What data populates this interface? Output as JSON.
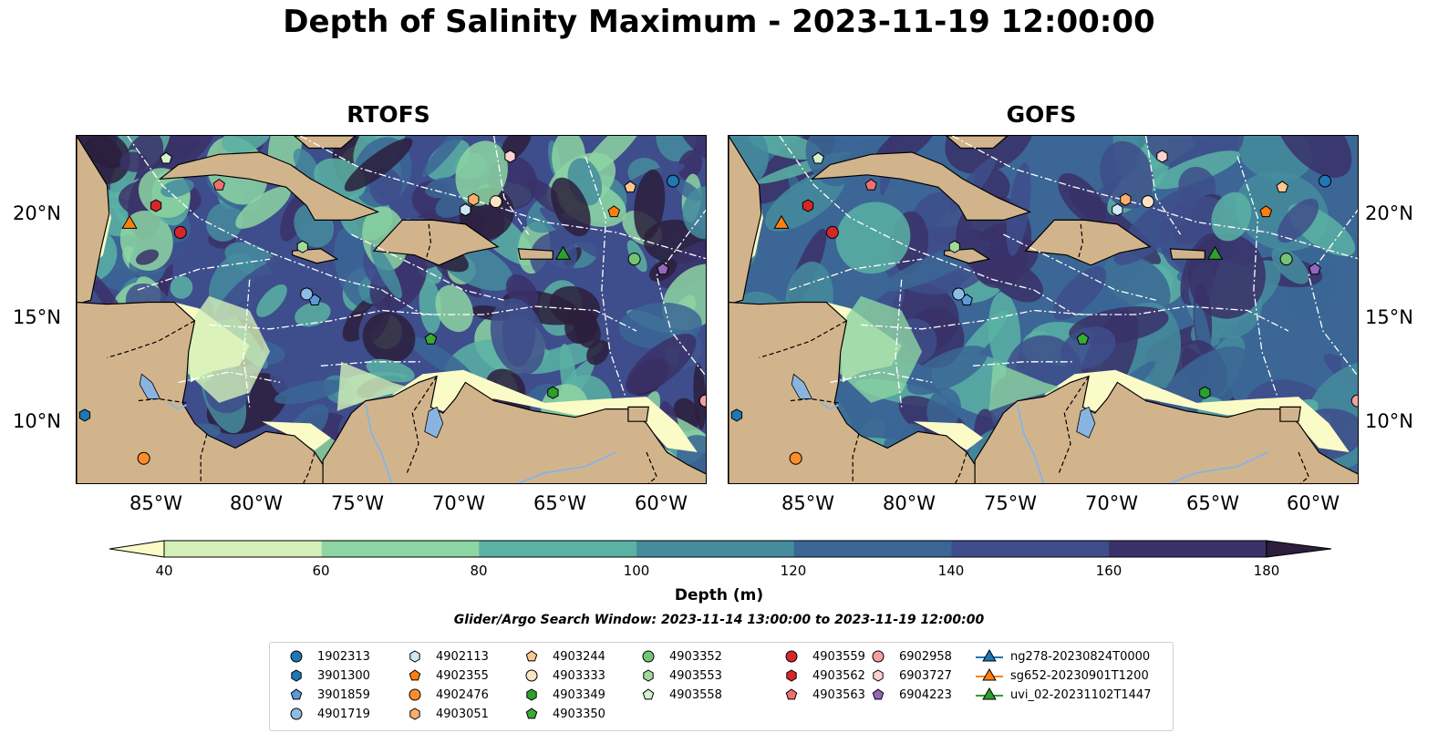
{
  "figure": {
    "title": "Depth of Salinity Maximum - 2023-11-19 12:00:00",
    "search_window": "Glider/Argo Search Window: 2023-11-14 13:00:00 to 2023-11-19 12:00:00"
  },
  "panels": [
    {
      "title": "RTOFS"
    },
    {
      "title": "GOFS"
    }
  ],
  "axes": {
    "lat_labels": [
      "20°N",
      "15°N",
      "10°N"
    ],
    "lon_labels": [
      "85°W",
      "80°W",
      "75°W",
      "70°W",
      "65°W",
      "60°W"
    ]
  },
  "colorbar": {
    "label": "Depth (m)",
    "ticks": [
      "40",
      "60",
      "80",
      "100",
      "120",
      "140",
      "160",
      "180"
    ],
    "colors": [
      "#fbfbc8",
      "#d4f0b8",
      "#8dd5a2",
      "#5ab2a4",
      "#458c9d",
      "#3b6695",
      "#3e4d8b",
      "#3a3168",
      "#2c1e3c"
    ]
  },
  "legend": {
    "items": [
      {
        "label": "1902313",
        "marker": "circle",
        "color": "#1f77b4"
      },
      {
        "label": "3901300",
        "marker": "hexagon",
        "color": "#1f77b4"
      },
      {
        "label": "3901859",
        "marker": "pentagon",
        "color": "#5b9bd5"
      },
      {
        "label": "4901719",
        "marker": "circle",
        "color": "#8dbde6"
      },
      {
        "label": "4902113",
        "marker": "hexagon",
        "color": "#cfe8f8"
      },
      {
        "label": "4902355",
        "marker": "pentagon",
        "color": "#ff7f0e"
      },
      {
        "label": "4902476",
        "marker": "circle",
        "color": "#ff8c2a"
      },
      {
        "label": "4903051",
        "marker": "hexagon",
        "color": "#fdae6b"
      },
      {
        "label": "4903244",
        "marker": "pentagon",
        "color": "#fdc790"
      },
      {
        "label": "4903333",
        "marker": "circle",
        "color": "#fde3c6"
      },
      {
        "label": "4903349",
        "marker": "hexagon",
        "color": "#2ca02c"
      },
      {
        "label": "4903350",
        "marker": "pentagon",
        "color": "#3aaa35"
      },
      {
        "label": "4903352",
        "marker": "circle",
        "color": "#74c476"
      },
      {
        "label": "4903553",
        "marker": "hexagon",
        "color": "#a1d99b"
      },
      {
        "label": "4903558",
        "marker": "pentagon",
        "color": "#d4f2cc"
      },
      {
        "label": "4903559",
        "marker": "circle",
        "color": "#d62728"
      },
      {
        "label": "4903562",
        "marker": "hexagon",
        "color": "#d62728"
      },
      {
        "label": "4903563",
        "marker": "pentagon",
        "color": "#f07070"
      },
      {
        "label": "6902958",
        "marker": "circle",
        "color": "#f4a0a0"
      },
      {
        "label": "6903727",
        "marker": "hexagon",
        "color": "#fcd1d1"
      },
      {
        "label": "6904223",
        "marker": "pentagon",
        "color": "#9467bd"
      },
      {
        "label": "ng278-20230824T0000",
        "marker": "triangle-line",
        "color": "#1f77b4"
      },
      {
        "label": "sg652-20230901T1200",
        "marker": "triangle-line",
        "color": "#ff7f0e"
      },
      {
        "label": "uvi_02-20231102T1447",
        "marker": "triangle-line",
        "color": "#2ca02c"
      }
    ]
  },
  "map_extent": {
    "lon": [
      -89,
      -58
    ],
    "lat": [
      7,
      24
    ]
  },
  "land_color": "#d2b48c",
  "lake_color": "#8ab4e0",
  "markers": [
    {
      "id": "1902313",
      "lon": -59.7,
      "lat": 21.8
    },
    {
      "id": "3901300",
      "lon": -88.6,
      "lat": 10.4
    },
    {
      "id": "3901859",
      "lon": -77.3,
      "lat": 16.0
    },
    {
      "id": "4901719",
      "lon": -77.7,
      "lat": 16.3
    },
    {
      "id": "4902113",
      "lon": -69.9,
      "lat": 20.4
    },
    {
      "id": "4902355",
      "lon": -62.6,
      "lat": 20.3
    },
    {
      "id": "4902476",
      "lon": -85.7,
      "lat": 8.3
    },
    {
      "id": "4903051",
      "lon": -69.5,
      "lat": 20.9
    },
    {
      "id": "4903244",
      "lon": -61.8,
      "lat": 21.5
    },
    {
      "id": "4903333",
      "lon": -68.4,
      "lat": 20.8
    },
    {
      "id": "4903349",
      "lon": -65.6,
      "lat": 11.5
    },
    {
      "id": "4903350",
      "lon": -71.6,
      "lat": 14.1
    },
    {
      "id": "4903352",
      "lon": -61.6,
      "lat": 18.0
    },
    {
      "id": "4903553",
      "lon": -77.9,
      "lat": 18.6
    },
    {
      "id": "4903558",
      "lon": -84.6,
      "lat": 22.9
    },
    {
      "id": "4903559",
      "lon": -83.9,
      "lat": 19.3
    },
    {
      "id": "4903562",
      "lon": -85.1,
      "lat": 20.6
    },
    {
      "id": "4903563",
      "lon": -82.0,
      "lat": 21.6
    },
    {
      "id": "6902958",
      "lon": -58.1,
      "lat": 11.1
    },
    {
      "id": "6903727",
      "lon": -67.7,
      "lat": 23.0
    },
    {
      "id": "6904223",
      "lon": -60.2,
      "lat": 17.5
    },
    {
      "id": "sg652-20230901T1200",
      "lon": -86.4,
      "lat": 19.7
    },
    {
      "id": "uvi_02-20231102T1447",
      "lon": -65.1,
      "lat": 18.2
    }
  ]
}
